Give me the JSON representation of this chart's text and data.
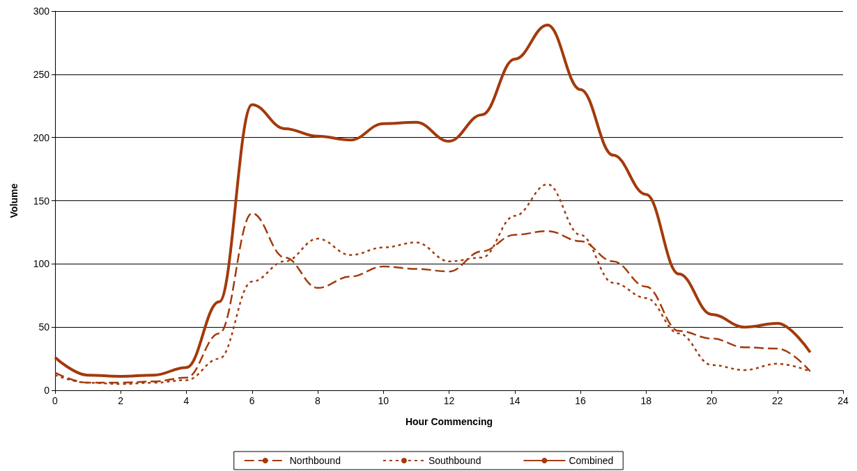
{
  "chart_data": {
    "type": "line",
    "xlabel": "Hour Commencing",
    "ylabel": "Volume",
    "x": [
      0,
      1,
      2,
      3,
      4,
      5,
      6,
      7,
      8,
      9,
      10,
      11,
      12,
      13,
      14,
      15,
      16,
      17,
      18,
      19,
      20,
      21,
      22,
      23
    ],
    "xlim": [
      0,
      24
    ],
    "xticks": [
      0,
      2,
      4,
      6,
      8,
      10,
      12,
      14,
      16,
      18,
      20,
      22,
      24
    ],
    "ylim": [
      0,
      300
    ],
    "yticks": [
      0,
      50,
      100,
      150,
      200,
      250,
      300
    ],
    "grid": "y",
    "legend": "bottom",
    "marker": "none",
    "series": [
      {
        "name": "Northbound",
        "color": "#a33a0c",
        "line_style": "dashed",
        "values": [
          14,
          6,
          6,
          7,
          10,
          45,
          140,
          105,
          81,
          90,
          98,
          96,
          94,
          110,
          123,
          126,
          118,
          102,
          82,
          47,
          41,
          34,
          33,
          15
        ]
      },
      {
        "name": "Southbound",
        "color": "#a33a0c",
        "line_style": "dotted",
        "values": [
          12,
          6,
          5,
          6,
          8,
          25,
          86,
          102,
          120,
          107,
          113,
          117,
          102,
          105,
          138,
          163,
          123,
          85,
          73,
          45,
          20,
          16,
          21,
          15
        ]
      },
      {
        "name": "Combined",
        "color": "#a33a0c",
        "line_style": "solid",
        "values": [
          26,
          12,
          11,
          12,
          18,
          70,
          226,
          207,
          201,
          198,
          211,
          212,
          197,
          218,
          262,
          289,
          238,
          186,
          155,
          92,
          60,
          50,
          53,
          30
        ]
      }
    ]
  }
}
